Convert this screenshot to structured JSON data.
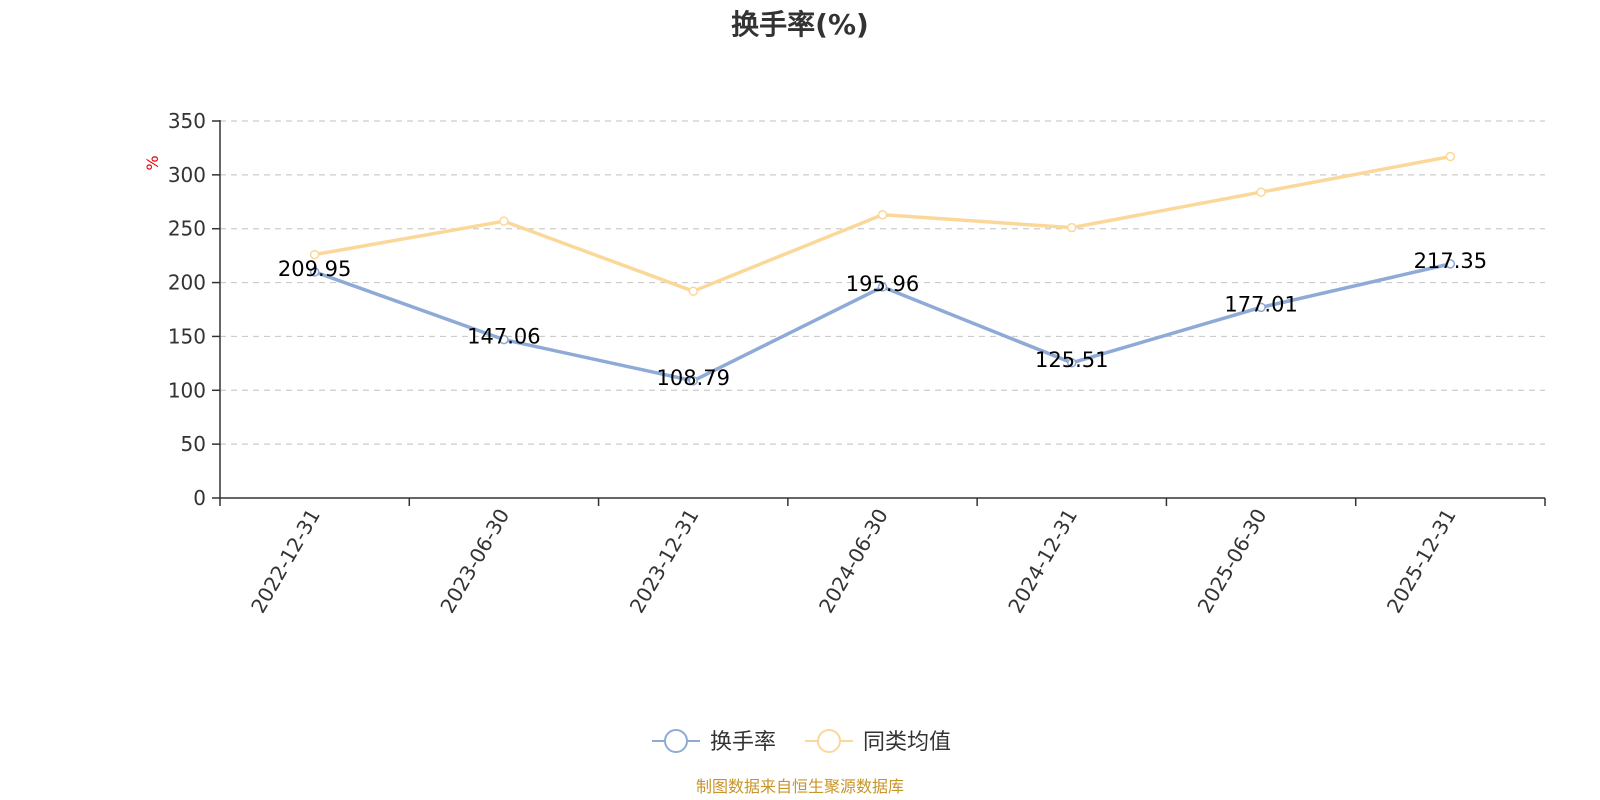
{
  "chart_data": {
    "type": "line",
    "title": "换手率(%)",
    "ylabel": "%",
    "xlabel": "",
    "categories": [
      "2022-12-31",
      "2023-06-30",
      "2023-12-31",
      "2024-06-30",
      "2024-12-31",
      "2025-06-30",
      "2025-12-31"
    ],
    "ylim": [
      0,
      350
    ],
    "yticks": [
      "0",
      "50",
      "100",
      "150",
      "200",
      "250",
      "300",
      "350"
    ],
    "grid": true,
    "legend_position": "bottom-center",
    "series": [
      {
        "name": "换手率",
        "color": "#8eaad6",
        "values": [
          209.95,
          147.06,
          108.79,
          195.96,
          125.51,
          177.01,
          217.35
        ],
        "labels": [
          "209.95",
          "147.06",
          "108.79",
          "195.96",
          "125.51",
          "177.01",
          "217.35"
        ]
      },
      {
        "name": "同类均值",
        "color": "#fbd899",
        "values": [
          226,
          257,
          192,
          263,
          251,
          284,
          317
        ]
      }
    ]
  },
  "source_note": "制图数据来自恒生聚源数据库"
}
